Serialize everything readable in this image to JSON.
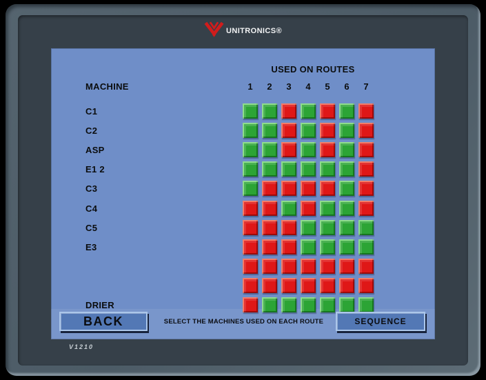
{
  "device": {
    "brand": "UNITRONICS®",
    "logo_icon": "unitronics-v-wings-icon",
    "version": "V1210"
  },
  "screen": {
    "header": "USED ON ROUTES",
    "machine_col_label": "MACHINE",
    "route_numbers": [
      "1",
      "2",
      "3",
      "4",
      "5",
      "6",
      "7"
    ],
    "grid": {
      "legend": {
        "G": "machine used on route (green)",
        "R": "machine not used on route (red)"
      },
      "rows": [
        {
          "label": "C1",
          "cells": [
            "G",
            "G",
            "R",
            "G",
            "R",
            "G",
            "R"
          ]
        },
        {
          "label": "C2",
          "cells": [
            "G",
            "G",
            "R",
            "G",
            "R",
            "G",
            "R"
          ]
        },
        {
          "label": "ASP",
          "cells": [
            "G",
            "G",
            "R",
            "G",
            "R",
            "G",
            "R"
          ]
        },
        {
          "label": "E1 2",
          "cells": [
            "G",
            "G",
            "G",
            "G",
            "G",
            "G",
            "R"
          ]
        },
        {
          "label": "C3",
          "cells": [
            "G",
            "R",
            "R",
            "R",
            "R",
            "G",
            "R"
          ]
        },
        {
          "label": "C4",
          "cells": [
            "R",
            "R",
            "G",
            "R",
            "G",
            "G",
            "R"
          ]
        },
        {
          "label": "C5",
          "cells": [
            "R",
            "R",
            "R",
            "G",
            "G",
            "G",
            "G"
          ]
        },
        {
          "label": "E3",
          "cells": [
            "R",
            "R",
            "R",
            "G",
            "G",
            "G",
            "G"
          ]
        },
        {
          "label": "",
          "cells": [
            "R",
            "R",
            "R",
            "R",
            "R",
            "R",
            "R"
          ]
        },
        {
          "label": "",
          "cells": [
            "R",
            "R",
            "R",
            "R",
            "R",
            "R",
            "R"
          ]
        },
        {
          "label": "DRIER",
          "cells": [
            "R",
            "G",
            "G",
            "G",
            "G",
            "G",
            "G"
          ]
        }
      ]
    },
    "footer": {
      "back_label": "BACK",
      "instruction": "SELECT THE MACHINES USED ON EACH ROUTE",
      "sequence_label": "SEQUENCE"
    }
  },
  "colors": {
    "bezel_outer": "#55646f",
    "bezel_face": "#364049",
    "screen_bg": "#6f8ec8",
    "cell_on_green": "#2ca435",
    "cell_off_red": "#df1717",
    "button_fill": "#5378b5",
    "button_border": "#abc6ea",
    "brand_red": "#d11c1c",
    "text_dark": "#0b0d0e"
  }
}
